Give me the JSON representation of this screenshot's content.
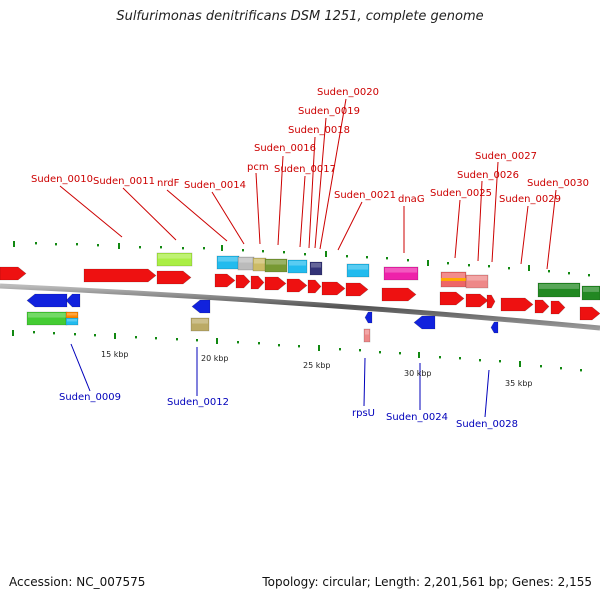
{
  "title": "Sulfurimonas denitrificans DSM 1251, complete genome",
  "accession": "Accession: NC_007575",
  "summary": "Topology: circular; Length: 2,201,561 bp; Genes: 2,155",
  "top_labels": [
    "Suden_0010",
    "Suden_0011",
    "nrdF",
    "Suden_0014",
    "pcm",
    "Suden_0016",
    "Suden_0017",
    "Suden_0018",
    "Suden_0019",
    "Suden_0020",
    "Suden_0021",
    "dnaG",
    "Suden_0025",
    "Suden_0026",
    "Suden_0027",
    "Suden_0029",
    "Suden_0030"
  ],
  "bottom_labels": [
    "Suden_0009",
    "Suden_0012",
    "rpsU",
    "Suden_0024",
    "Suden_0028"
  ],
  "scale_labels": [
    "15 kbp",
    "20 kbp",
    "25 kbp",
    "30 kbp",
    "35 kbp"
  ],
  "colors": {
    "forward": "#ee1111",
    "reverse": "#1122dd",
    "top_label": "#cc0000",
    "bottom_label": "#0000bb",
    "tick": "#118811",
    "backbone": "#777777"
  }
}
